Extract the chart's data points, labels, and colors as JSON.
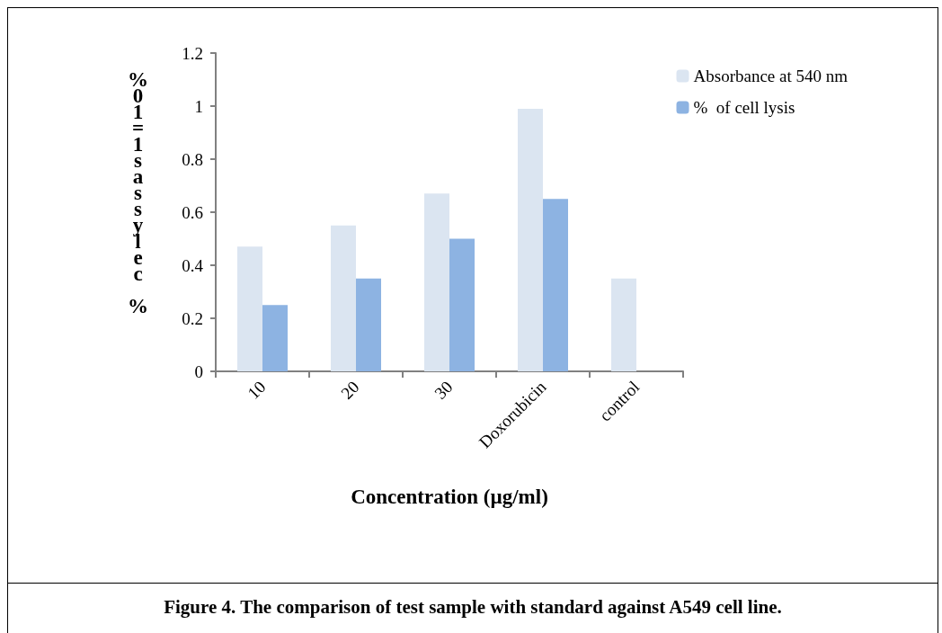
{
  "chart_data": {
    "type": "bar",
    "xlabel": "Concentration (µg/ml)",
    "ylabel": "%01=1sassylec %",
    "categories": [
      "10",
      "20",
      "30",
      "Doxorubicin",
      "control"
    ],
    "series": [
      {
        "name": "Absorbance at 540 nm",
        "color": "#dbe5f1",
        "values": [
          0.47,
          0.55,
          0.67,
          0.99,
          0.35
        ]
      },
      {
        "name": "%  of cell lysis",
        "color": "#8db3e2",
        "values": [
          0.25,
          0.35,
          0.5,
          0.65,
          null
        ]
      }
    ],
    "ylim": [
      0,
      1.2
    ],
    "yticks": [
      0,
      0.2,
      0.4,
      0.6,
      0.8,
      1,
      1.2
    ],
    "grid": false,
    "legend": "top right",
    "annotations": [
      "Figure 4. The comparison of test sample with standard against A549 cell line."
    ]
  }
}
